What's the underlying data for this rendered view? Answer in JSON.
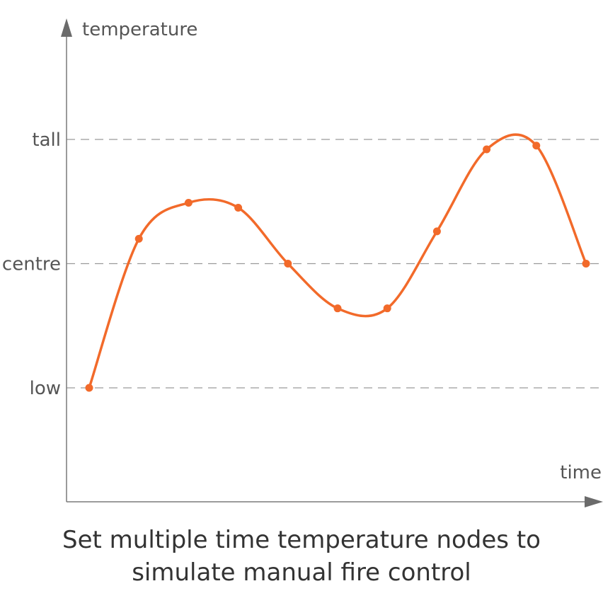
{
  "chart_data": {
    "type": "line",
    "title": "",
    "xlabel": "time",
    "ylabel": "temperature",
    "yticks": [
      {
        "label": "low",
        "value": 0
      },
      {
        "label": "centre",
        "value": 1
      },
      {
        "label": "tall",
        "value": 2
      }
    ],
    "ylim": [
      -0.9,
      2.9
    ],
    "xlim": [
      0,
      11
    ],
    "grid": "horizontal dashed at tick levels",
    "smooth": true,
    "color": "#f26a2a",
    "x": [
      0,
      1,
      2,
      3,
      4,
      5,
      6,
      7,
      8,
      9,
      10
    ],
    "y": [
      0.0,
      1.2,
      1.49,
      1.45,
      1.0,
      0.64,
      0.64,
      1.26,
      1.92,
      1.95,
      1.0
    ]
  },
  "caption": {
    "line1": "Set multiple time temperature nodes to",
    "line2": "simulate manual fire control"
  }
}
